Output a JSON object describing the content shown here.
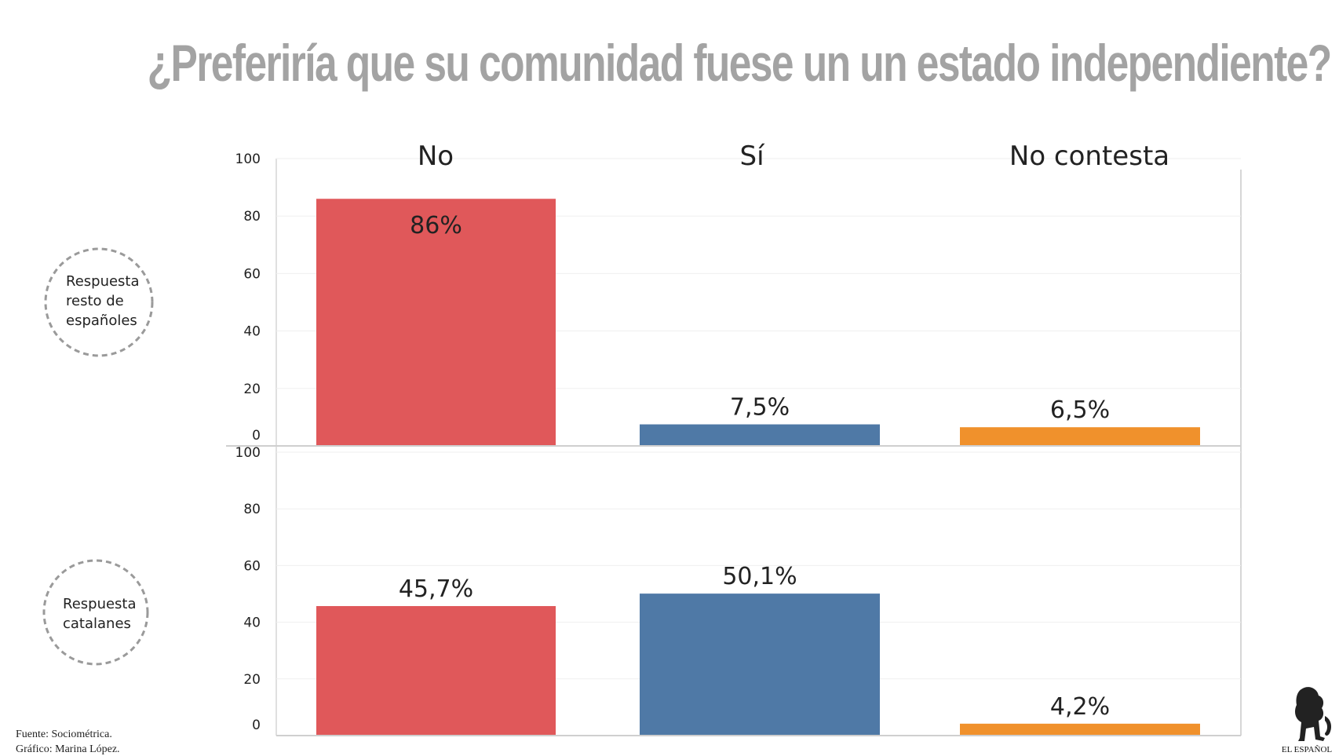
{
  "title": "¿Preferiría que su comunidad fuese un un estado independiente?",
  "footer": {
    "source": "Fuente: Sociométrica.",
    "credit": "Gráfico: Marina López."
  },
  "logo": {
    "text": "EL ESPAÑOL"
  },
  "chart_data": [
    {
      "type": "bar",
      "panel_label": "Respuesta resto de españoles",
      "panel_label_lines": [
        "Respuesta",
        "resto de",
        "españoles"
      ],
      "categories": [
        "No",
        "Sí",
        "No contesta"
      ],
      "values": [
        86,
        7.5,
        6.5
      ],
      "data_labels": [
        "86%",
        "7,5%",
        "6,5%"
      ],
      "colors": [
        "#e0585a",
        "#4f79a6",
        "#f0912c"
      ],
      "ylim": [
        0,
        100
      ],
      "yticks": [
        0,
        20,
        40,
        60,
        80,
        100
      ],
      "grid": true
    },
    {
      "type": "bar",
      "panel_label": "Respuesta catalanes",
      "panel_label_lines": [
        "Respuesta",
        "catalanes"
      ],
      "categories": [
        "No",
        "Sí",
        "No contesta"
      ],
      "values": [
        45.7,
        50.1,
        4.2
      ],
      "data_labels": [
        "45,7%",
        "50,1%",
        "4,2%"
      ],
      "colors": [
        "#e0585a",
        "#4f79a6",
        "#f0912c"
      ],
      "ylim": [
        0,
        100
      ],
      "yticks": [
        0,
        20,
        40,
        60,
        80,
        100
      ],
      "grid": true
    }
  ]
}
